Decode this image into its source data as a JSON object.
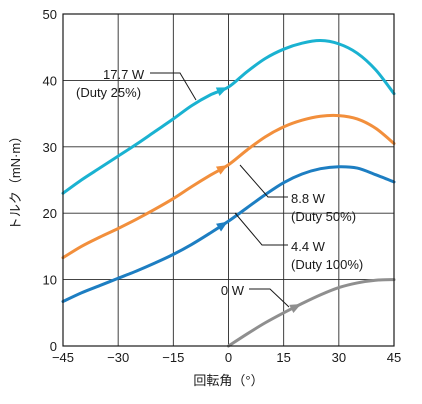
{
  "chart_data": {
    "type": "line",
    "title": "",
    "xlabel": "回転角（°）",
    "ylabel": "トルク（mN·m）",
    "xlim": [
      -45,
      45
    ],
    "ylim": [
      0,
      50
    ],
    "xticks": [
      -45,
      -30,
      -15,
      0,
      15,
      30,
      45
    ],
    "xtick_labels": [
      "−45",
      "−30",
      "−15",
      "0",
      "15",
      "30",
      "45"
    ],
    "yticks": [
      0,
      10,
      20,
      30,
      40,
      50
    ],
    "ytick_labels": [
      "0",
      "10",
      "20",
      "30",
      "40",
      "50"
    ],
    "grid": true,
    "series": [
      {
        "name": "17.7 W (Duty 25%)",
        "color": "#1ab2d1",
        "x": [
          -45,
          -40,
          -35,
          -30,
          -25,
          -20,
          -15,
          -10,
          -5,
          0,
          5,
          10,
          15,
          20,
          25,
          30,
          35,
          40,
          45
        ],
        "y": [
          23.0,
          25.0,
          26.8,
          28.6,
          30.4,
          32.3,
          34.2,
          36.2,
          37.8,
          39.0,
          41.3,
          43.3,
          44.7,
          45.6,
          46.0,
          45.5,
          44.1,
          41.6,
          38.0
        ]
      },
      {
        "name": "8.8 W (Duty 50%)",
        "color": "#f28f3c",
        "x": [
          -45,
          -40,
          -35,
          -30,
          -25,
          -20,
          -15,
          -10,
          -5,
          0,
          5,
          10,
          15,
          20,
          25,
          30,
          35,
          40,
          45
        ],
        "y": [
          13.3,
          15.0,
          16.4,
          17.7,
          19.1,
          20.6,
          22.2,
          24.0,
          25.7,
          27.3,
          29.5,
          31.5,
          33.0,
          34.0,
          34.6,
          34.7,
          34.2,
          32.8,
          30.5
        ]
      },
      {
        "name": "4.4 W (Duty 100%)",
        "color": "#1d7ec2",
        "x": [
          -45,
          -40,
          -35,
          -30,
          -25,
          -20,
          -15,
          -10,
          -5,
          0,
          5,
          10,
          15,
          20,
          25,
          30,
          35,
          40,
          45
        ],
        "y": [
          6.7,
          8.0,
          9.1,
          10.2,
          11.3,
          12.5,
          13.8,
          15.3,
          17.0,
          18.8,
          20.8,
          22.8,
          24.6,
          25.9,
          26.7,
          27.0,
          26.8,
          25.8,
          24.7
        ]
      },
      {
        "name": "0 W",
        "color": "#8f8f8f",
        "x": [
          0,
          5,
          10,
          15,
          20,
          25,
          30,
          35,
          40,
          45
        ],
        "y": [
          0.0,
          1.8,
          3.5,
          5.0,
          6.4,
          7.7,
          8.8,
          9.5,
          9.9,
          10.0
        ]
      }
    ],
    "annotations": [
      {
        "lines": [
          "17.7 W",
          "(Duty 25%)"
        ]
      },
      {
        "lines": [
          "8.8 W",
          "(Duty 50%)"
        ]
      },
      {
        "lines": [
          "4.4 W",
          "(Duty 100%)"
        ]
      },
      {
        "lines": [
          "0 W"
        ]
      }
    ]
  }
}
